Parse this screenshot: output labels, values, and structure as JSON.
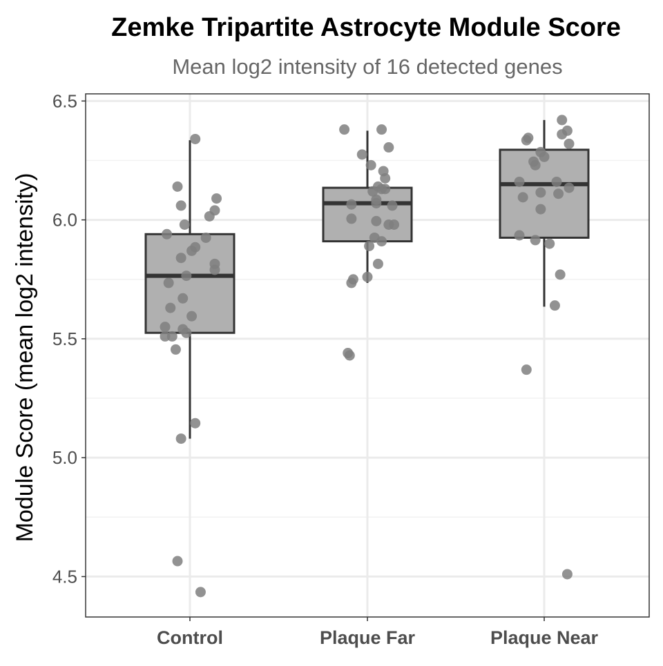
{
  "chart_data": {
    "type": "box",
    "title": "Zemke Tripartite Astrocyte Module Score",
    "subtitle": "Mean log2 intensity of 16 detected genes",
    "xlabel": "",
    "ylabel": "Module Score (mean log2 intensity)",
    "ylim": [
      4.33,
      6.53
    ],
    "y_ticks": [
      4.5,
      5.0,
      5.5,
      6.0,
      6.5
    ],
    "y_tick_labels": [
      "4.5",
      "5.0",
      "5.5",
      "6.0",
      "6.5"
    ],
    "grid": true,
    "legend": "none",
    "colors": {
      "box_fill": "#b0b0b0",
      "box_stroke": "#333333",
      "point": "#7f7f7f",
      "grid": "#ebebeb",
      "panel_border": "#333333",
      "tick_text": "#4d4d4d",
      "subtitle_text": "#666666"
    },
    "categories": [
      "Control",
      "Plaque Far",
      "Plaque Near"
    ],
    "boxes": [
      {
        "category": "Control",
        "q1": 5.525,
        "median": 5.765,
        "q3": 5.94,
        "whisker_low": 5.08,
        "whisker_high": 6.335
      },
      {
        "category": "Plaque Far",
        "q1": 5.91,
        "median": 6.07,
        "q3": 6.135,
        "whisker_low": 5.735,
        "whisker_high": 6.375
      },
      {
        "category": "Plaque Near",
        "q1": 5.925,
        "median": 6.15,
        "q3": 6.295,
        "whisker_low": 5.635,
        "whisker_high": 6.42
      }
    ],
    "points": [
      {
        "category": "Control",
        "jitter": -0.13,
        "y": 5.94
      },
      {
        "category": "Control",
        "jitter": 0.03,
        "y": 6.34
      },
      {
        "category": "Control",
        "jitter": -0.07,
        "y": 6.14
      },
      {
        "category": "Control",
        "jitter": -0.05,
        "y": 6.06
      },
      {
        "category": "Control",
        "jitter": -0.03,
        "y": 5.98
      },
      {
        "category": "Control",
        "jitter": 0.15,
        "y": 6.09
      },
      {
        "category": "Control",
        "jitter": 0.14,
        "y": 6.04
      },
      {
        "category": "Control",
        "jitter": 0.11,
        "y": 6.015
      },
      {
        "category": "Control",
        "jitter": 0.09,
        "y": 5.925
      },
      {
        "category": "Control",
        "jitter": 0.03,
        "y": 5.885
      },
      {
        "category": "Control",
        "jitter": 0.01,
        "y": 5.87
      },
      {
        "category": "Control",
        "jitter": -0.05,
        "y": 5.84
      },
      {
        "category": "Control",
        "jitter": 0.14,
        "y": 5.815
      },
      {
        "category": "Control",
        "jitter": 0.14,
        "y": 5.79
      },
      {
        "category": "Control",
        "jitter": -0.02,
        "y": 5.765
      },
      {
        "category": "Control",
        "jitter": -0.12,
        "y": 5.735
      },
      {
        "category": "Control",
        "jitter": -0.04,
        "y": 5.67
      },
      {
        "category": "Control",
        "jitter": -0.11,
        "y": 5.63
      },
      {
        "category": "Control",
        "jitter": 0.01,
        "y": 5.595
      },
      {
        "category": "Control",
        "jitter": -0.14,
        "y": 5.55
      },
      {
        "category": "Control",
        "jitter": -0.04,
        "y": 5.54
      },
      {
        "category": "Control",
        "jitter": -0.02,
        "y": 5.525
      },
      {
        "category": "Control",
        "jitter": -0.14,
        "y": 5.51
      },
      {
        "category": "Control",
        "jitter": -0.1,
        "y": 5.51
      },
      {
        "category": "Control",
        "jitter": -0.08,
        "y": 5.455
      },
      {
        "category": "Control",
        "jitter": 0.03,
        "y": 5.145
      },
      {
        "category": "Control",
        "jitter": -0.05,
        "y": 5.08
      },
      {
        "category": "Control",
        "jitter": -0.07,
        "y": 4.565
      },
      {
        "category": "Control",
        "jitter": 0.06,
        "y": 4.435
      },
      {
        "category": "Plaque Far",
        "jitter": -0.13,
        "y": 6.38
      },
      {
        "category": "Plaque Far",
        "jitter": 0.08,
        "y": 6.38
      },
      {
        "category": "Plaque Far",
        "jitter": 0.12,
        "y": 6.305
      },
      {
        "category": "Plaque Far",
        "jitter": -0.03,
        "y": 6.275
      },
      {
        "category": "Plaque Far",
        "jitter": 0.02,
        "y": 6.23
      },
      {
        "category": "Plaque Far",
        "jitter": 0.09,
        "y": 6.205
      },
      {
        "category": "Plaque Far",
        "jitter": 0.1,
        "y": 6.175
      },
      {
        "category": "Plaque Far",
        "jitter": 0.06,
        "y": 6.14
      },
      {
        "category": "Plaque Far",
        "jitter": 0.08,
        "y": 6.13
      },
      {
        "category": "Plaque Far",
        "jitter": 0.1,
        "y": 6.13
      },
      {
        "category": "Plaque Far",
        "jitter": 0.03,
        "y": 6.12
      },
      {
        "category": "Plaque Far",
        "jitter": 0.05,
        "y": 6.085
      },
      {
        "category": "Plaque Far",
        "jitter": 0.05,
        "y": 6.07
      },
      {
        "category": "Plaque Far",
        "jitter": -0.09,
        "y": 6.065
      },
      {
        "category": "Plaque Far",
        "jitter": 0.14,
        "y": 6.06
      },
      {
        "category": "Plaque Far",
        "jitter": -0.09,
        "y": 6.005
      },
      {
        "category": "Plaque Far",
        "jitter": 0.05,
        "y": 5.995
      },
      {
        "category": "Plaque Far",
        "jitter": 0.12,
        "y": 5.98
      },
      {
        "category": "Plaque Far",
        "jitter": 0.15,
        "y": 5.98
      },
      {
        "category": "Plaque Far",
        "jitter": 0.04,
        "y": 5.925
      },
      {
        "category": "Plaque Far",
        "jitter": 0.08,
        "y": 5.91
      },
      {
        "category": "Plaque Far",
        "jitter": 0.01,
        "y": 5.89
      },
      {
        "category": "Plaque Far",
        "jitter": 0.06,
        "y": 5.815
      },
      {
        "category": "Plaque Far",
        "jitter": 0.0,
        "y": 5.76
      },
      {
        "category": "Plaque Far",
        "jitter": -0.08,
        "y": 5.75
      },
      {
        "category": "Plaque Far",
        "jitter": -0.09,
        "y": 5.735
      },
      {
        "category": "Plaque Far",
        "jitter": -0.11,
        "y": 5.44
      },
      {
        "category": "Plaque Far",
        "jitter": -0.1,
        "y": 5.43
      },
      {
        "category": "Plaque Near",
        "jitter": 0.1,
        "y": 6.42
      },
      {
        "category": "Plaque Near",
        "jitter": 0.13,
        "y": 6.375
      },
      {
        "category": "Plaque Near",
        "jitter": 0.1,
        "y": 6.36
      },
      {
        "category": "Plaque Near",
        "jitter": -0.09,
        "y": 6.345
      },
      {
        "category": "Plaque Near",
        "jitter": -0.1,
        "y": 6.335
      },
      {
        "category": "Plaque Near",
        "jitter": 0.14,
        "y": 6.32
      },
      {
        "category": "Plaque Near",
        "jitter": -0.02,
        "y": 6.285
      },
      {
        "category": "Plaque Near",
        "jitter": 0.0,
        "y": 6.265
      },
      {
        "category": "Plaque Near",
        "jitter": -0.06,
        "y": 6.245
      },
      {
        "category": "Plaque Near",
        "jitter": -0.05,
        "y": 6.23
      },
      {
        "category": "Plaque Near",
        "jitter": 0.07,
        "y": 6.16
      },
      {
        "category": "Plaque Near",
        "jitter": -0.14,
        "y": 6.16
      },
      {
        "category": "Plaque Near",
        "jitter": 0.14,
        "y": 6.135
      },
      {
        "category": "Plaque Near",
        "jitter": -0.02,
        "y": 6.115
      },
      {
        "category": "Plaque Near",
        "jitter": 0.08,
        "y": 6.11
      },
      {
        "category": "Plaque Near",
        "jitter": -0.12,
        "y": 6.095
      },
      {
        "category": "Plaque Near",
        "jitter": -0.02,
        "y": 6.045
      },
      {
        "category": "Plaque Near",
        "jitter": -0.14,
        "y": 5.935
      },
      {
        "category": "Plaque Near",
        "jitter": -0.05,
        "y": 5.915
      },
      {
        "category": "Plaque Near",
        "jitter": 0.03,
        "y": 5.9
      },
      {
        "category": "Plaque Near",
        "jitter": 0.09,
        "y": 5.77
      },
      {
        "category": "Plaque Near",
        "jitter": 0.06,
        "y": 5.64
      },
      {
        "category": "Plaque Near",
        "jitter": -0.1,
        "y": 5.37
      },
      {
        "category": "Plaque Near",
        "jitter": 0.13,
        "y": 4.51
      }
    ]
  }
}
